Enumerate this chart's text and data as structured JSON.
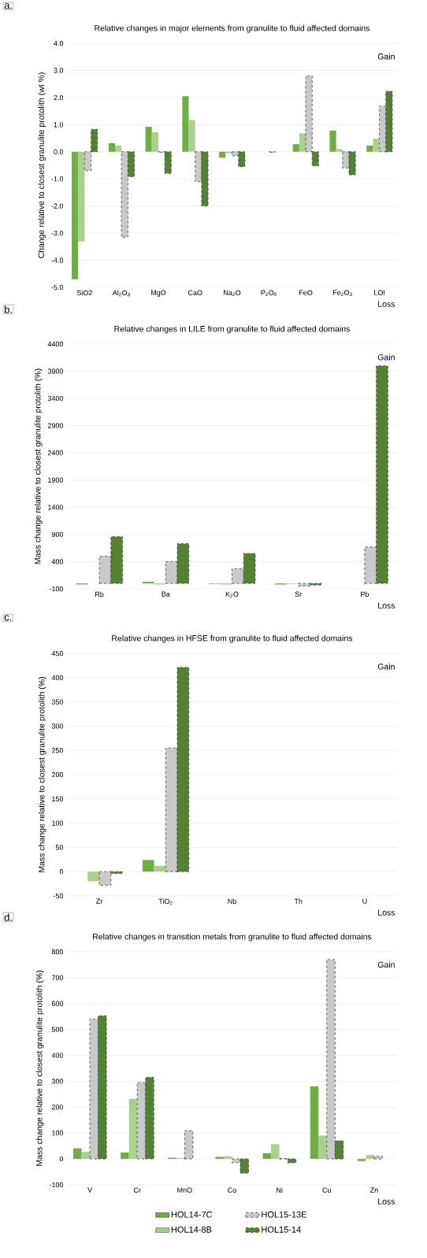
{
  "chart_data": [
    {
      "type": "bar",
      "title": "Relative changes in major elements from granulite to fluid affected domains",
      "ylabel": "Change relative to closest granulite protolith (wt %)",
      "annotations": [
        "a.",
        "Gain",
        "Loss"
      ],
      "categories": [
        "SiO2",
        "Al$_{2}$O$_{3}$",
        "MgO",
        "CaO",
        "Na$_{2}$O",
        "P$_{2}$O$_{5}$",
        "FeO",
        "Fe$_{2}$O$_{3}$",
        "LOI"
      ],
      "series": [
        {
          "color": "#70ad47",
          "values": [
            -4.7,
            0.32,
            0.92,
            2.05,
            -0.22,
            null,
            0.28,
            0.78,
            0.23
          ]
        },
        {
          "color": "#a9d18e",
          "values": [
            -3.3,
            0.22,
            0.72,
            1.17,
            -0.05,
            null,
            0.68,
            0.1,
            0.48
          ]
        },
        {
          "color": "#c9c9c9",
          "line_style": "dashed",
          "values": [
            -0.7,
            -3.15,
            -0.03,
            -1.1,
            -0.15,
            -0.02,
            2.8,
            -0.6,
            1.68
          ]
        },
        {
          "color": "#548235",
          "line_style": "dashed",
          "values": [
            0.83,
            -0.92,
            -0.8,
            -2.0,
            -0.55,
            null,
            -0.52,
            -0.85,
            2.23
          ]
        }
      ],
      "ylim": [
        -5,
        4
      ],
      "yticks": [
        {
          "value": -5,
          "label": "-5.0"
        },
        {
          "value": -4,
          "label": "-4.0"
        },
        {
          "value": -3,
          "label": "-3.0"
        },
        {
          "value": -2,
          "label": "-2.0"
        },
        {
          "value": -1,
          "label": "-1.0"
        },
        {
          "value": 0,
          "label": "0.0"
        },
        {
          "value": 1,
          "label": "1.0"
        },
        {
          "value": 2,
          "label": "2.0"
        },
        {
          "value": 3,
          "label": "3.0"
        },
        {
          "value": 4,
          "label": "4.0"
        }
      ],
      "grid": "y"
    },
    {
      "type": "bar",
      "title": "Relative changes in LILE from granulite to fluid affected domains",
      "ylabel": "Mass change relative to closest granulite protolith (%)",
      "annotations": [
        "b.",
        "Gain",
        "Loss"
      ],
      "categories": [
        "Rb",
        "Ba",
        "K$_{2}$O",
        "Sr",
        "Pb"
      ],
      "series": [
        {
          "color": "#70ad47",
          "values": [
            -20,
            30,
            -10,
            -20,
            null
          ]
        },
        {
          "color": "#a9d18e",
          "values": [
            null,
            -20,
            -20,
            -10,
            null
          ]
        },
        {
          "color": "#c9c9c9",
          "line_style": "dashed",
          "values": [
            500,
            400,
            270,
            -50,
            670
          ]
        },
        {
          "color": "#548235",
          "line_style": "dashed",
          "values": [
            860,
            730,
            550,
            -30,
            4000
          ]
        }
      ],
      "ylim": [
        -100,
        4400
      ],
      "yticks": [
        -100,
        400,
        900,
        1400,
        1900,
        2400,
        2900,
        3400,
        3900,
        4400
      ],
      "grid": "y"
    },
    {
      "type": "bar",
      "title": "Relative changes in HFSE from granulite to fluid affected domains",
      "ylabel": "Mass change relative to closest granulite protolith (%)",
      "annotations": [
        "c.",
        "Gain",
        "Loss"
      ],
      "categories": [
        "Zr",
        "TiO$_{2}$",
        "Nb",
        "Th",
        "U"
      ],
      "series": [
        {
          "color": "#70ad47",
          "values": [
            null,
            24,
            null,
            null,
            null
          ]
        },
        {
          "color": "#a9d18e",
          "values": [
            -20,
            12,
            null,
            null,
            null
          ]
        },
        {
          "color": "#c9c9c9",
          "line_style": "dashed",
          "values": [
            -28,
            255,
            null,
            null,
            null
          ]
        },
        {
          "color": "#548235",
          "line_style": "dashed",
          "values": [
            -4,
            421,
            null,
            null,
            null
          ]
        }
      ],
      "ylim": [
        -50,
        450
      ],
      "yticks": [
        -50,
        0,
        50,
        100,
        150,
        200,
        250,
        300,
        350,
        400,
        450
      ],
      "grid": "y"
    },
    {
      "type": "bar",
      "title": "Relative changes in transition metals from granulite to fluid affected domains",
      "ylabel": "Mass change relative to closest granulite protolith (%)",
      "annotations": [
        "d.",
        "Gain",
        "Loss"
      ],
      "categories": [
        "V",
        "Cr",
        "MnO",
        "Co",
        "Ni",
        "Cu",
        "Zn"
      ],
      "series": [
        {
          "name": "HOL14-7C",
          "color": "#70ad47",
          "values": [
            41,
            25,
            5,
            8,
            22,
            280,
            -8
          ]
        },
        {
          "name": "HOL14-8B",
          "color": "#a9d18e",
          "values": [
            27,
            232,
            3,
            10,
            57,
            90,
            15
          ]
        },
        {
          "name": "HOL15-13E",
          "color": "#c9c9c9",
          "line_style": "dashed",
          "values": [
            540,
            295,
            109,
            -15,
            1,
            770,
            10
          ]
        },
        {
          "name": "HOL15-14",
          "color": "#548235",
          "line_style": "dashed",
          "values": [
            553,
            315,
            null,
            -55,
            -15,
            70,
            null
          ]
        }
      ],
      "ylim": [
        -100,
        800
      ],
      "yticks": [
        -100,
        0,
        100,
        200,
        300,
        400,
        500,
        600,
        700,
        800
      ],
      "grid": "y",
      "legend": "bottom"
    }
  ]
}
